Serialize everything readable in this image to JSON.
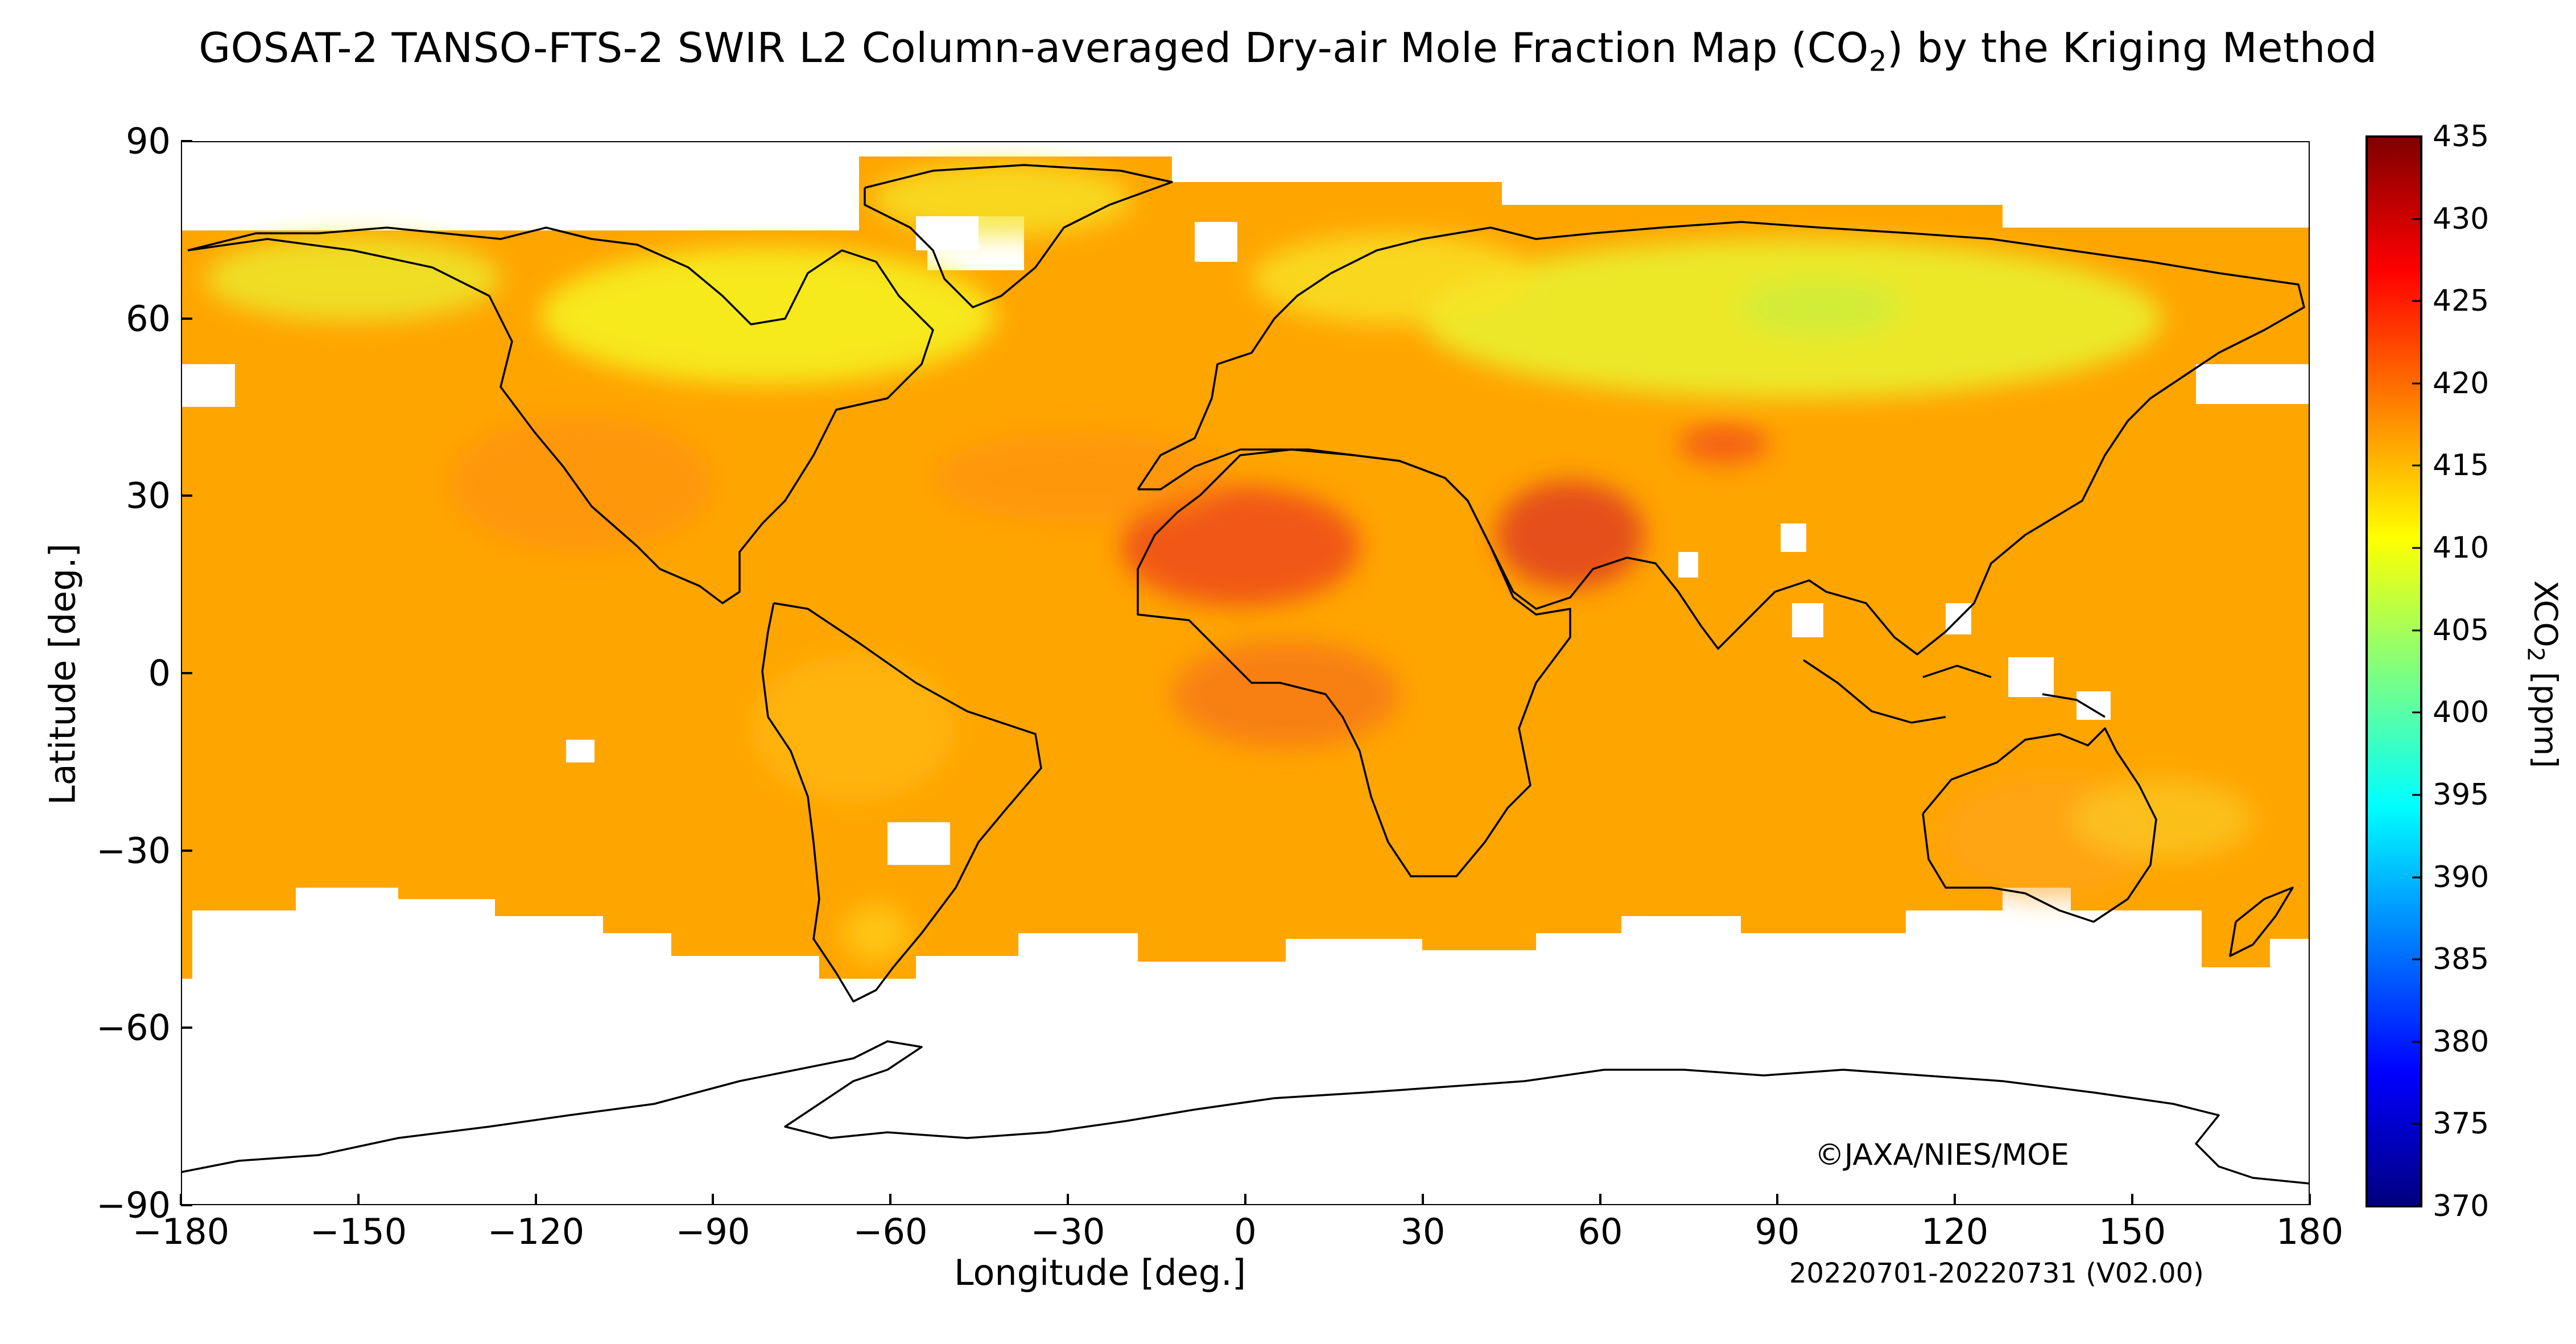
{
  "title_main": "GOSAT-2 TANSO-FTS-2 SWIR L2 Column-averaged Dry-air Mole Fraction Map (CO",
  "title_sub": "2",
  "title_end": ") by the Kriging Method",
  "x_axis_label": "Longitude [deg.]",
  "y_axis_label": "Latitude [deg.]",
  "colorbar_label_main": "XCO",
  "colorbar_label_sub": "2",
  "colorbar_label_end": " [ppm]",
  "credit": "©JAXA/NIES/MOE",
  "period": "20220701-20220731 (V02.00)",
  "x_ticks": [
    "−180",
    "−150",
    "−120",
    "−90",
    "−60",
    "−30",
    "0",
    "30",
    "60",
    "90",
    "120",
    "150",
    "180"
  ],
  "y_ticks": [
    "90",
    "60",
    "30",
    "0",
    "−30",
    "−60",
    "−90"
  ],
  "colorbar_ticks": [
    "435",
    "430",
    "425",
    "420",
    "415",
    "410",
    "405",
    "400",
    "395",
    "390",
    "385",
    "380",
    "375",
    "370"
  ],
  "colorbar": {
    "min": 370,
    "max": 435,
    "colors": [
      "#00007f",
      "#0000ff",
      "#007fff",
      "#00ffff",
      "#7fff7f",
      "#ffff00",
      "#ff7f00",
      "#ff0000",
      "#7f0000"
    ]
  },
  "chart_data": {
    "type": "heatmap",
    "projection": "equirectangular",
    "xlim": [
      -180,
      180
    ],
    "ylim": [
      -90,
      90
    ],
    "value_unit": "ppm",
    "typical_values": {
      "tropics_ocean": 418,
      "northern_boreal": 412,
      "southern_ocean": 416,
      "sahara_arabia": 424
    }
  }
}
